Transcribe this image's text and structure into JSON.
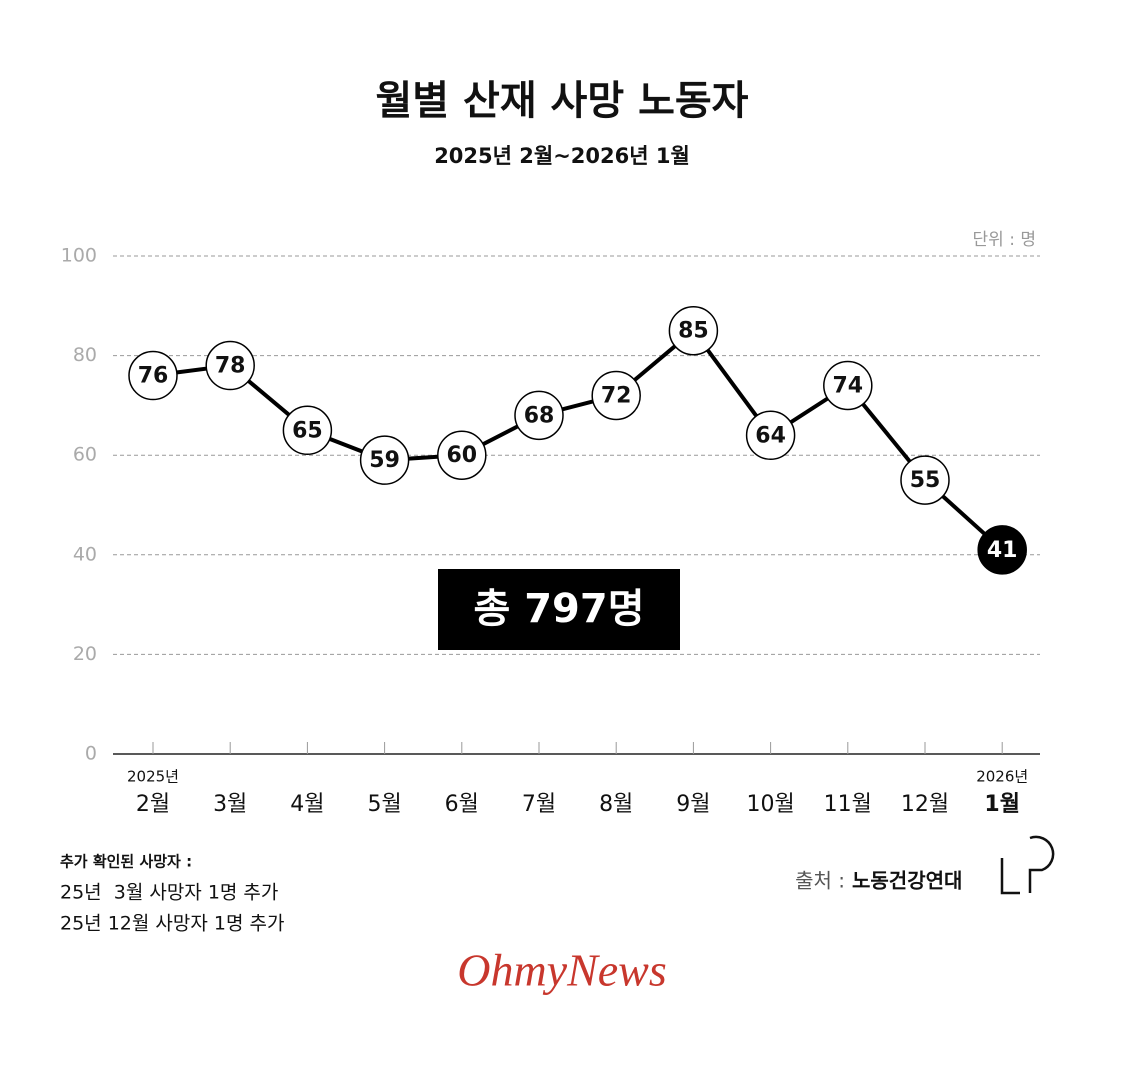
{
  "chart_data": {
    "type": "line",
    "title": "월별 산재 사망 노동자",
    "subtitle": "2025년 2월~2026년 1월",
    "unit_label": "단위 : 명",
    "categories": [
      "2월",
      "3월",
      "4월",
      "5월",
      "6월",
      "7월",
      "8월",
      "9월",
      "10월",
      "11월",
      "12월",
      "1월"
    ],
    "year_labels": {
      "start": "2025년",
      "end": "2026년"
    },
    "series": [
      {
        "name": "사망 노동자",
        "color": "#000000",
        "values": [
          76,
          78,
          65,
          59,
          60,
          68,
          72,
          85,
          64,
          74,
          55,
          41
        ]
      }
    ],
    "ylim": [
      0,
      100
    ],
    "yticks": [
      0,
      20,
      40,
      60,
      80,
      100
    ],
    "grid": true,
    "total_label": "총 797명",
    "notes": {
      "title": "추가 확인된 사망자 :",
      "lines": [
        "25년  3월 사망자 1명 추가",
        "25년 12월 사망자 1명 추가"
      ]
    },
    "source": {
      "label": "출처 :",
      "name": "노동건강연대"
    },
    "logo": "OhmyNews"
  }
}
